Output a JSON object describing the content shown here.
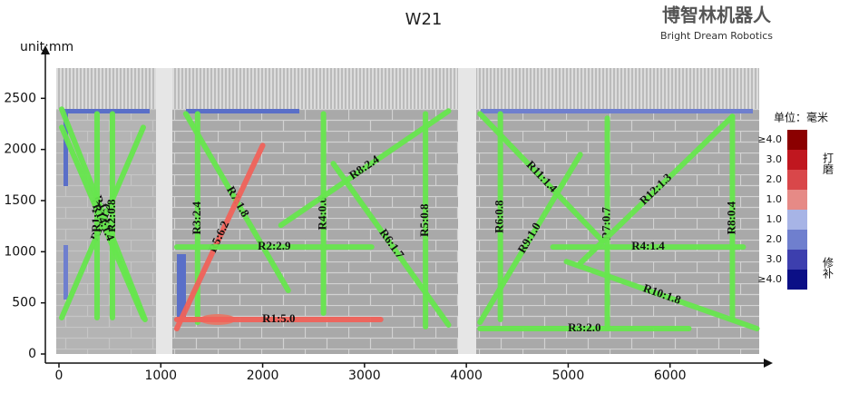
{
  "chart_data": {
    "type": "segments",
    "title": "W21",
    "y_axis_label": "unit:mm",
    "xlim": [
      0,
      7000
    ],
    "ylim": [
      0,
      3000
    ],
    "xticks": [
      0,
      1000,
      2000,
      3000,
      4000,
      5000,
      6000
    ],
    "yticks": [
      0,
      500,
      1000,
      1500,
      2000,
      2500
    ],
    "series": [
      {
        "name": "R15:1.5",
        "color": "#66e64d",
        "x": [
          27,
          845
        ],
        "values": [
          2394,
          337
        ]
      },
      {
        "name": "R13:1.4",
        "color": "#66e64d",
        "x": [
          828,
          27
        ],
        "values": [
          2216,
          355
        ]
      },
      {
        "name": "R1:1.2",
        "color": "#66e64d",
        "x": [
          374,
          374
        ],
        "values": [
          2349,
          355
        ]
      },
      {
        "name": "R2:0.8",
        "color": "#66e64d",
        "x": [
          525,
          525
        ],
        "values": [
          2349,
          355
        ]
      },
      {
        "name": "R14:1.4",
        "color": "#66e64d",
        "x": [
          27,
          828
        ],
        "values": [
          2216,
          355
        ]
      },
      {
        "name": "R3:2.4",
        "color": "#66e64d",
        "x": [
          1361,
          1361
        ],
        "values": [
          2349,
          310
        ]
      },
      {
        "name": "R7:1.8",
        "color": "#66e64d",
        "x": [
          1246,
          2251
        ],
        "values": [
          2349,
          621
        ]
      },
      {
        "name": "R5:6.2",
        "color": "#f0625a",
        "x": [
          1157,
          2000
        ],
        "values": [
          248,
          2039
        ]
      },
      {
        "name": "R1:5.0",
        "color": "#f0625a",
        "x": [
          1157,
          3159
        ],
        "values": [
          337,
          337
        ]
      },
      {
        "name": "R2:2.9",
        "color": "#66e64d",
        "x": [
          1157,
          3070
        ],
        "values": [
          1046,
          1046
        ]
      },
      {
        "name": "R4:0.6",
        "color": "#66e64d",
        "x": [
          2597,
          2597
        ],
        "values": [
          2349,
          399
        ]
      },
      {
        "name": "R8:2.4",
        "color": "#66e64d",
        "x": [
          2180,
          3825
        ],
        "values": [
          1259,
          2376
        ]
      },
      {
        "name": "R6:1.7",
        "color": "#66e64d",
        "x": [
          2693,
          3825
        ],
        "values": [
          1862,
          284
        ]
      },
      {
        "name": "R5:0.8",
        "color": "#66e64d",
        "x": [
          3599,
          3599
        ],
        "values": [
          2349,
          266
        ]
      },
      {
        "name": "R11:1.4",
        "color": "#66e64d",
        "x": [
          4134,
          5334
        ],
        "values": [
          2349,
          1108
        ]
      },
      {
        "name": "R6:0.8",
        "color": "#66e64d",
        "x": [
          4334,
          4334
        ],
        "values": [
          2349,
          337
        ]
      },
      {
        "name": "R9:1.0",
        "color": "#66e64d",
        "x": [
          4134,
          5118
        ],
        "values": [
          310,
          1950
        ]
      },
      {
        "name": "R3:2.0",
        "color": "#66e64d",
        "x": [
          4134,
          6185
        ],
        "values": [
          248,
          248
        ]
      },
      {
        "name": "R7:0.7",
        "color": "#66e64d",
        "x": [
          5384,
          5384
        ],
        "values": [
          2305,
          248
        ]
      },
      {
        "name": "R4:1.4",
        "color": "#66e64d",
        "x": [
          4850,
          6719
        ],
        "values": [
          1046,
          1046
        ]
      },
      {
        "name": "R12:1.3",
        "color": "#66e64d",
        "x": [
          5118,
          6612
        ],
        "values": [
          887,
          2323
        ]
      },
      {
        "name": "R8:0.4",
        "color": "#66e64d",
        "x": [
          6612,
          6612
        ],
        "values": [
          2323,
          337
        ]
      },
      {
        "name": "R10:1.8",
        "color": "#66e64d",
        "x": [
          4983,
          6853
        ],
        "values": [
          904,
          248
        ]
      }
    ],
    "colorbar": {
      "title": "单位：毫米",
      "labels": [
        "≥4.0",
        "3.0",
        "2.0",
        "1.0",
        "1.0",
        "2.0",
        "3.0",
        "≥4.0"
      ],
      "colors": [
        "#8b0000",
        "#c0171f",
        "#d9474a",
        "#e68a86",
        "#a7b4e6",
        "#6f7fce",
        "#3d3fae",
        "#0b0f86"
      ],
      "upper_note": "打磨",
      "lower_note": "修补"
    }
  },
  "brand": {
    "name": "博智林机器人",
    "tagline": "Bright Dream Robotics"
  }
}
